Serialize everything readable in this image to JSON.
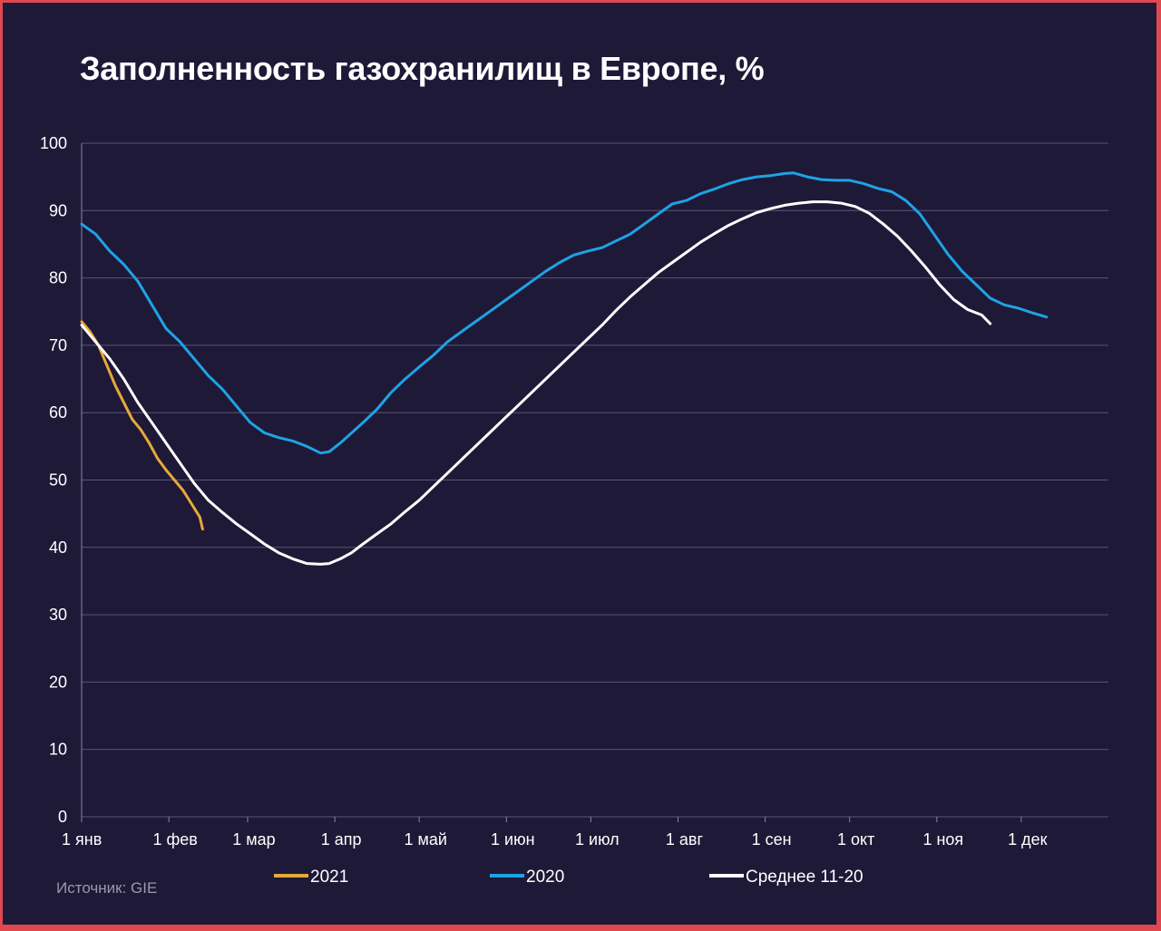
{
  "colors": {
    "background": "#1f1938",
    "frame": "#e0474f",
    "grid": "#5a5575",
    "series_2021": "#e6a93a",
    "series_2020": "#1ea3e6",
    "series_avg": "#ffffff"
  },
  "chart_data": {
    "type": "line",
    "title": "Заполненность газохранилищ в Европе, %",
    "xlabel": "",
    "ylabel": "",
    "ylim": [
      0,
      100
    ],
    "xlim": [
      0,
      365
    ],
    "grid": true,
    "legend_position": "bottom",
    "y_ticks": [
      "0",
      "10",
      "20",
      "30",
      "40",
      "50",
      "60",
      "70",
      "80",
      "90",
      "100"
    ],
    "x_ticks": [
      {
        "day": 0,
        "label": "1 янв"
      },
      {
        "day": 31,
        "label": "1 фев"
      },
      {
        "day": 59,
        "label": "1 мар"
      },
      {
        "day": 90,
        "label": "1 апр"
      },
      {
        "day": 120,
        "label": "1 май"
      },
      {
        "day": 151,
        "label": "1 июн"
      },
      {
        "day": 181,
        "label": "1 июл"
      },
      {
        "day": 212,
        "label": "1 авг"
      },
      {
        "day": 243,
        "label": "1 сен"
      },
      {
        "day": 273,
        "label": "1 окт"
      },
      {
        "day": 304,
        "label": "1 ноя"
      },
      {
        "day": 334,
        "label": "1 дек"
      }
    ],
    "series": [
      {
        "name": "2021",
        "color": "#e6a93a",
        "points": [
          [
            0,
            73.5
          ],
          [
            3,
            72
          ],
          [
            6,
            70
          ],
          [
            9,
            67
          ],
          [
            12,
            64
          ],
          [
            15,
            61.5
          ],
          [
            18,
            59
          ],
          [
            21,
            57.5
          ],
          [
            24,
            55.5
          ],
          [
            27,
            53.2
          ],
          [
            30,
            51.5
          ],
          [
            33,
            50
          ],
          [
            36,
            48.5
          ],
          [
            39,
            46.5
          ],
          [
            42,
            44.5
          ],
          [
            43,
            42.7
          ]
        ]
      },
      {
        "name": "2020",
        "color": "#1ea3e6",
        "points": [
          [
            0,
            88
          ],
          [
            5,
            86.5
          ],
          [
            10,
            84
          ],
          [
            15,
            82
          ],
          [
            20,
            79.5
          ],
          [
            25,
            76
          ],
          [
            30,
            72.5
          ],
          [
            35,
            70.5
          ],
          [
            40,
            68
          ],
          [
            45,
            65.5
          ],
          [
            50,
            63.5
          ],
          [
            55,
            61
          ],
          [
            60,
            58.5
          ],
          [
            65,
            57
          ],
          [
            70,
            56.3
          ],
          [
            75,
            55.8
          ],
          [
            80,
            55
          ],
          [
            85,
            54
          ],
          [
            88,
            54.2
          ],
          [
            92,
            55.5
          ],
          [
            96,
            57
          ],
          [
            100,
            58.5
          ],
          [
            105,
            60.5
          ],
          [
            110,
            63
          ],
          [
            115,
            65
          ],
          [
            120,
            66.8
          ],
          [
            125,
            68.5
          ],
          [
            130,
            70.5
          ],
          [
            135,
            72
          ],
          [
            140,
            73.5
          ],
          [
            145,
            75
          ],
          [
            150,
            76.5
          ],
          [
            155,
            78
          ],
          [
            160,
            79.5
          ],
          [
            165,
            81
          ],
          [
            170,
            82.3
          ],
          [
            175,
            83.4
          ],
          [
            180,
            84
          ],
          [
            185,
            84.5
          ],
          [
            190,
            85.5
          ],
          [
            195,
            86.5
          ],
          [
            200,
            88
          ],
          [
            205,
            89.5
          ],
          [
            210,
            91
          ],
          [
            215,
            91.5
          ],
          [
            220,
            92.5
          ],
          [
            225,
            93.2
          ],
          [
            230,
            94
          ],
          [
            235,
            94.6
          ],
          [
            240,
            95
          ],
          [
            245,
            95.2
          ],
          [
            250,
            95.5
          ],
          [
            253,
            95.6
          ],
          [
            258,
            95
          ],
          [
            263,
            94.6
          ],
          [
            268,
            94.5
          ],
          [
            273,
            94.5
          ],
          [
            278,
            94
          ],
          [
            283,
            93.3
          ],
          [
            288,
            92.8
          ],
          [
            293,
            91.5
          ],
          [
            298,
            89.5
          ],
          [
            303,
            86.5
          ],
          [
            308,
            83.5
          ],
          [
            313,
            81
          ],
          [
            318,
            79
          ],
          [
            323,
            77
          ],
          [
            328,
            76
          ],
          [
            333,
            75.5
          ],
          [
            338,
            74.8
          ],
          [
            343,
            74.2
          ]
        ]
      },
      {
        "name": "Среднее 11-20",
        "color": "#ffffff",
        "points": [
          [
            0,
            73
          ],
          [
            5,
            70.5
          ],
          [
            10,
            68
          ],
          [
            15,
            65
          ],
          [
            20,
            61.5
          ],
          [
            25,
            58.5
          ],
          [
            30,
            55.5
          ],
          [
            35,
            52.5
          ],
          [
            40,
            49.5
          ],
          [
            45,
            47
          ],
          [
            50,
            45.2
          ],
          [
            55,
            43.5
          ],
          [
            60,
            42
          ],
          [
            65,
            40.5
          ],
          [
            70,
            39.2
          ],
          [
            75,
            38.3
          ],
          [
            80,
            37.6
          ],
          [
            85,
            37.5
          ],
          [
            88,
            37.6
          ],
          [
            92,
            38.3
          ],
          [
            96,
            39.2
          ],
          [
            100,
            40.5
          ],
          [
            105,
            42
          ],
          [
            110,
            43.5
          ],
          [
            115,
            45.3
          ],
          [
            120,
            47
          ],
          [
            125,
            49
          ],
          [
            130,
            51
          ],
          [
            135,
            53
          ],
          [
            140,
            55
          ],
          [
            145,
            57
          ],
          [
            150,
            59
          ],
          [
            155,
            61
          ],
          [
            160,
            63
          ],
          [
            165,
            65
          ],
          [
            170,
            67
          ],
          [
            175,
            69
          ],
          [
            180,
            71
          ],
          [
            185,
            73
          ],
          [
            190,
            75.2
          ],
          [
            195,
            77.2
          ],
          [
            200,
            79
          ],
          [
            205,
            80.8
          ],
          [
            210,
            82.3
          ],
          [
            215,
            83.8
          ],
          [
            220,
            85.3
          ],
          [
            225,
            86.6
          ],
          [
            230,
            87.8
          ],
          [
            235,
            88.8
          ],
          [
            240,
            89.7
          ],
          [
            245,
            90.3
          ],
          [
            250,
            90.8
          ],
          [
            255,
            91.1
          ],
          [
            260,
            91.3
          ],
          [
            265,
            91.3
          ],
          [
            270,
            91.1
          ],
          [
            275,
            90.6
          ],
          [
            280,
            89.6
          ],
          [
            285,
            88
          ],
          [
            290,
            86.2
          ],
          [
            295,
            84
          ],
          [
            300,
            81.6
          ],
          [
            305,
            79
          ],
          [
            310,
            76.8
          ],
          [
            315,
            75.3
          ],
          [
            320,
            74.5
          ],
          [
            323,
            73.2
          ]
        ]
      }
    ]
  },
  "legend": [
    {
      "label": "2021",
      "color": "#e6a93a"
    },
    {
      "label": "2020",
      "color": "#1ea3e6"
    },
    {
      "label": "Среднее 11-20",
      "color": "#ffffff"
    }
  ],
  "source": "Источник: GIE"
}
